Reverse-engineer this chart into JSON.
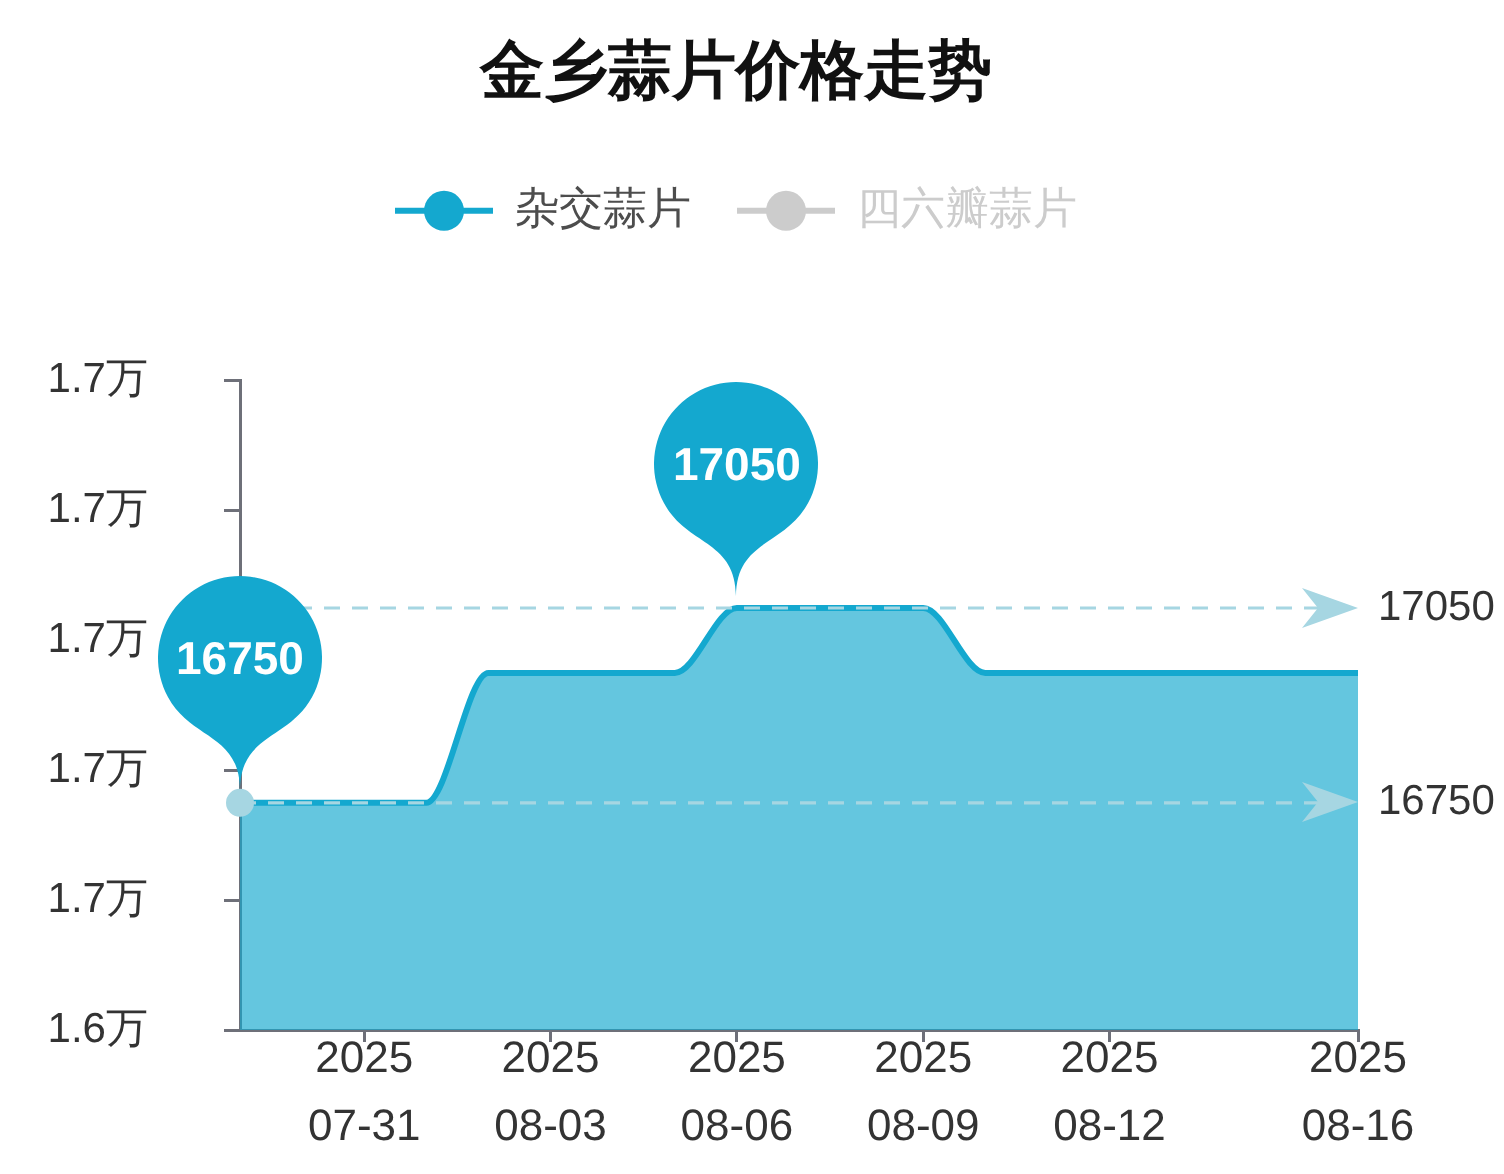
{
  "chart_data": {
    "type": "area",
    "title": "金乡蒜片价格走势",
    "x": [
      "2025-07-29",
      "2025-07-30",
      "2025-07-31",
      "2025-08-01",
      "2025-08-02",
      "2025-08-03",
      "2025-08-04",
      "2025-08-05",
      "2025-08-06",
      "2025-08-07",
      "2025-08-08",
      "2025-08-09",
      "2025-08-10",
      "2025-08-11",
      "2025-08-12",
      "2025-08-13",
      "2025-08-14",
      "2025-08-15",
      "2025-08-16"
    ],
    "series": [
      {
        "name": "杂交蒜片",
        "color": "#14a8cf",
        "values": [
          1.675,
          1.675,
          1.675,
          1.675,
          1.695,
          1.695,
          1.695,
          1.695,
          1.705,
          1.705,
          1.705,
          1.705,
          1.695,
          1.695,
          1.695,
          1.695,
          1.695,
          1.695,
          1.695
        ]
      },
      {
        "name": "四六瓣蒜片",
        "color": "#cccccc",
        "values": [
          null,
          null,
          null,
          null,
          null,
          null,
          null,
          null,
          null,
          null,
          null,
          null,
          null,
          null,
          null,
          null,
          null,
          null,
          null
        ]
      }
    ],
    "xlim": [
      "2025-07-29",
      "2025-08-16"
    ],
    "xticks": [
      {
        "value": "2025-07-31",
        "label": "2025\n07-31"
      },
      {
        "value": "2025-08-03",
        "label": "2025\n08-03"
      },
      {
        "value": "2025-08-06",
        "label": "2025\n08-06"
      },
      {
        "value": "2025-08-09",
        "label": "2025\n08-09"
      },
      {
        "value": "2025-08-12",
        "label": "2025\n08-12"
      },
      {
        "value": "2025-08-16",
        "label": "2025\n08-16"
      }
    ],
    "ylim": [
      1.64,
      1.74
    ],
    "yticks": [
      {
        "value": 1.64,
        "label": "1.6万"
      },
      {
        "value": 1.66,
        "label": "1.7万"
      },
      {
        "value": 1.68,
        "label": "1.7万"
      },
      {
        "value": 1.7,
        "label": "1.7万"
      },
      {
        "value": 1.72,
        "label": "1.7万"
      },
      {
        "value": 1.74,
        "label": "1.7万"
      }
    ],
    "grid": false,
    "legend": "top",
    "marker": "none",
    "ref_lines": [
      {
        "axis": "y",
        "value": 1.705,
        "color": "#a6d6e2",
        "line_style": "dashed"
      },
      {
        "axis": "y",
        "value": 1.675,
        "color": "#a6d6e2",
        "line_style": "dashed"
      }
    ],
    "annotations": [
      {
        "text": "16750",
        "x": "2025-07-29",
        "y": 1.675
      },
      {
        "text": "17050",
        "x": "2025-08-06",
        "y": 1.705
      },
      {
        "text": "17050",
        "x": "2025-08-16",
        "y": 1.705
      },
      {
        "text": "16750",
        "x": "2025-08-16",
        "y": 1.675
      }
    ]
  }
}
